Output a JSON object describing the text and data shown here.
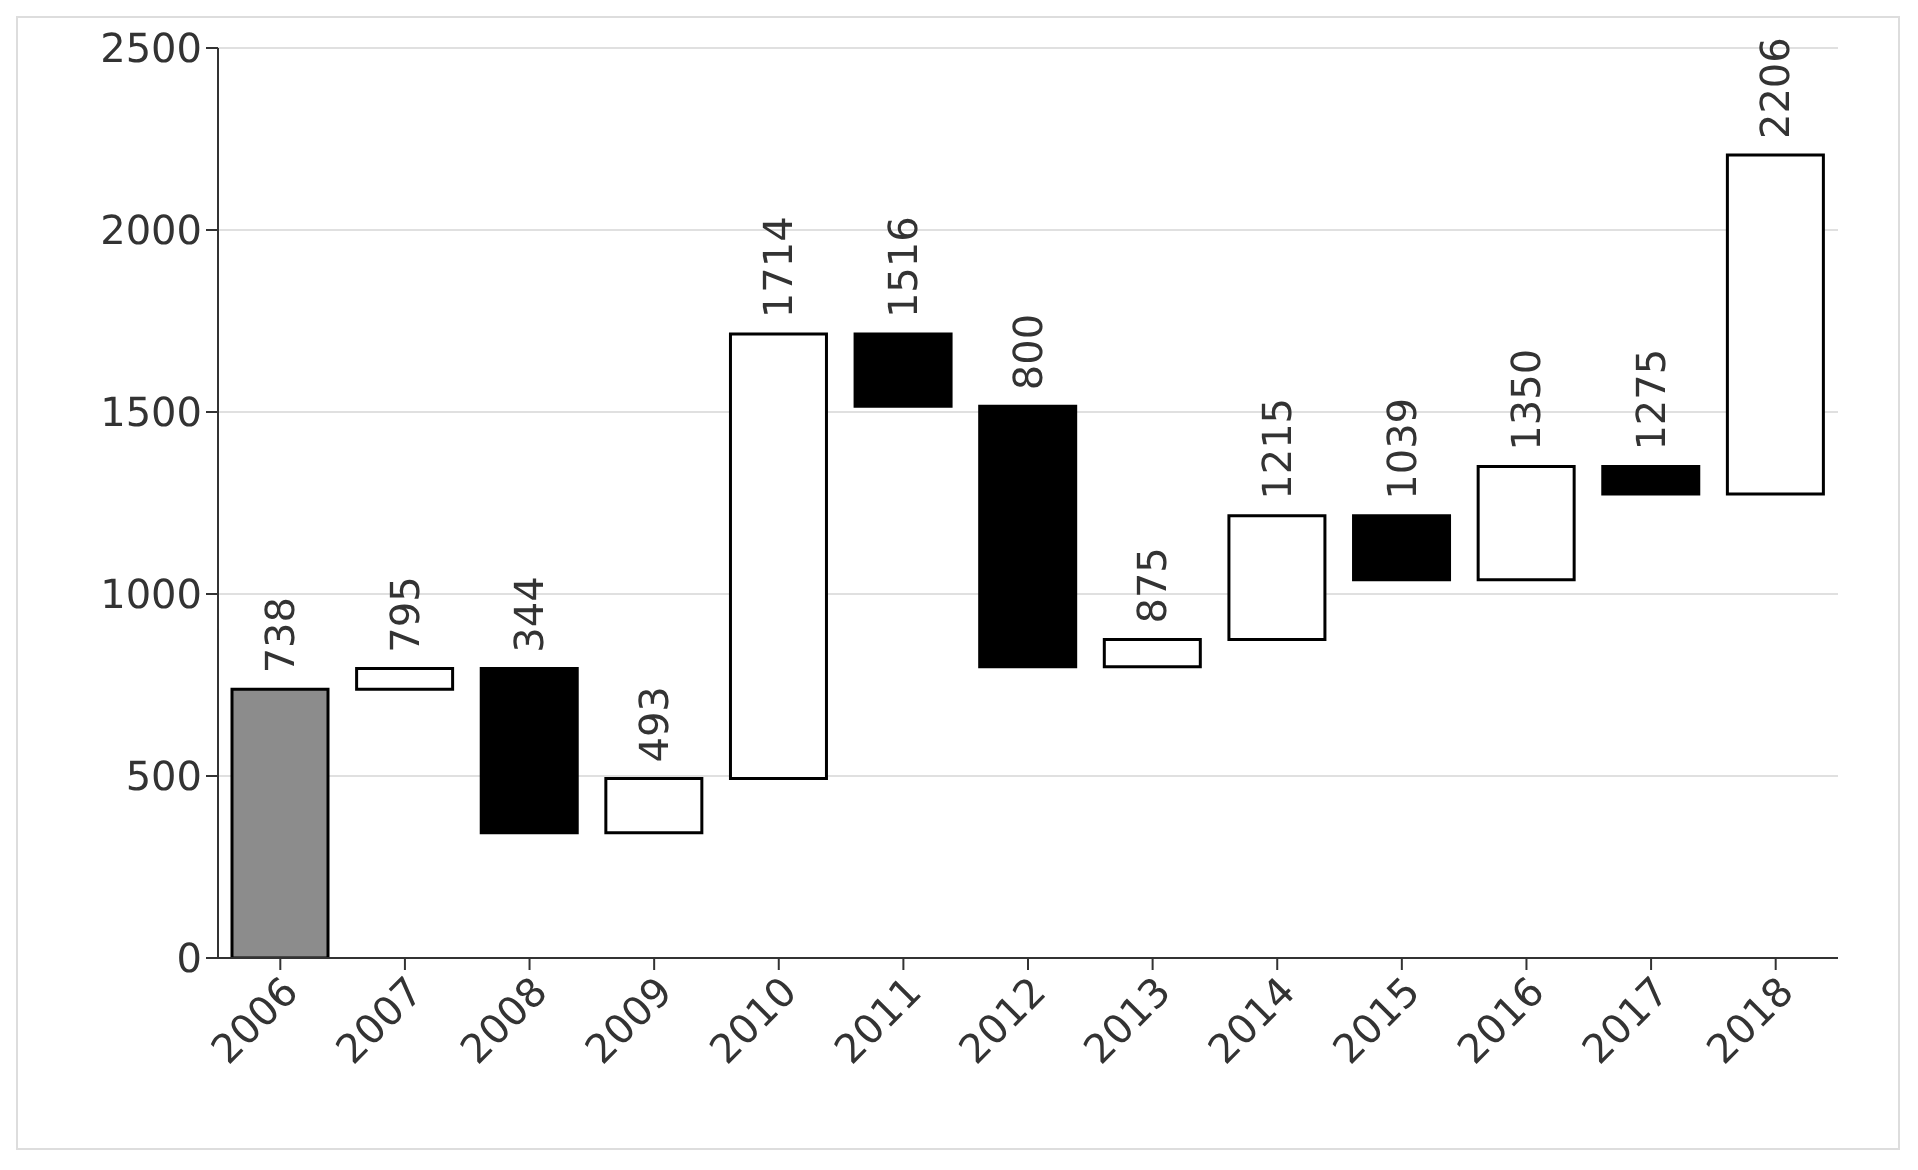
{
  "chart_data": {
    "type": "bar",
    "categories": [
      "2006",
      "2007",
      "2008",
      "2009",
      "2010",
      "2011",
      "2012",
      "2013",
      "2014",
      "2015",
      "2016",
      "2017",
      "2018"
    ],
    "base": [
      0,
      738,
      795,
      344,
      493,
      1714,
      1516,
      800,
      875,
      1215,
      1039,
      1350,
      1275
    ],
    "values": [
      738,
      57,
      -451,
      149,
      1221,
      -198,
      -716,
      75,
      340,
      -176,
      311,
      -75,
      931
    ],
    "value_labels": [
      "738",
      "795",
      "344",
      "493",
      "1714",
      "1516",
      "800",
      "875",
      "1215",
      "1039",
      "1350",
      "1275",
      "2206"
    ],
    "colors": [
      "#8c8c8c",
      "#ffffff",
      "#000000",
      "#ffffff",
      "#ffffff",
      "#000000",
      "#000000",
      "#ffffff",
      "#ffffff",
      "#000000",
      "#ffffff",
      "#000000",
      "#ffffff"
    ],
    "ylim": [
      0,
      2500
    ],
    "yticks": [
      0,
      500,
      1000,
      1500,
      2000,
      2500
    ],
    "grid": "y"
  }
}
